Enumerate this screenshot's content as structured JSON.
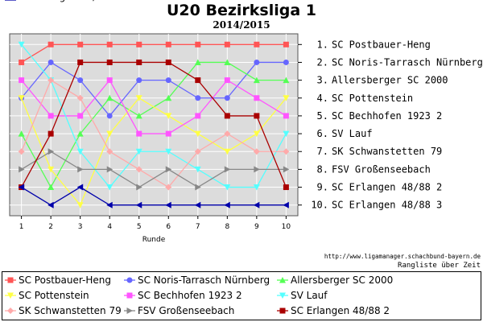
{
  "header": {
    "title": "U20 Bezirksliga 1",
    "subtitle": "2014/2015"
  },
  "footer": {
    "url": "http://www.ligamanager.schachbund-bayern.de",
    "caption": "Rangliste über Zeit"
  },
  "chart_data": {
    "type": "line",
    "title": "U20 Bezirksliga 1",
    "subtitle": "2014/2015",
    "xlabel": "Runde",
    "ylabel": "",
    "x": [
      1,
      2,
      3,
      4,
      5,
      6,
      7,
      8,
      9,
      10
    ],
    "xlim": [
      0.6,
      10.4
    ],
    "ylim": [
      10.6,
      0.4
    ],
    "y_inverted": true,
    "grid": true,
    "background": "#dcdcdc",
    "rank_labels": [
      "1.",
      "2.",
      "3.",
      "4.",
      "5.",
      "6.",
      "7.",
      "8.",
      "9.",
      "10."
    ],
    "final_standing": [
      "SC Postbauer-Heng",
      "SC Noris-Tarrasch Nürnberg",
      "Allersberger SC 2000",
      "SC Pottenstein",
      "SC Bechhofen 1923 2",
      "SV Lauf",
      "SK Schwanstetten 79",
      "FSV Großenseebach",
      "SC Erlangen 48/88 2",
      "SC Erlangen 48/88 3"
    ],
    "legend_position": "bottom",
    "series": [
      {
        "name": "SC Postbauer-Heng",
        "color": "#ff5555",
        "marker": "square",
        "values": [
          2,
          1,
          1,
          1,
          1,
          1,
          1,
          1,
          1,
          1
        ]
      },
      {
        "name": "SC Noris-Tarrasch Nürnberg",
        "color": "#6666ff",
        "marker": "circle",
        "values": [
          4,
          2,
          3,
          5,
          3,
          3,
          4,
          4,
          2,
          2
        ]
      },
      {
        "name": "Allersberger SC 2000",
        "color": "#55ff55",
        "marker": "triangle-up",
        "values": [
          6,
          9,
          6,
          4,
          5,
          4,
          2,
          2,
          3,
          3
        ]
      },
      {
        "name": "SC Pottenstein",
        "color": "#ffff44",
        "marker": "triangle-down",
        "values": [
          4,
          8,
          10,
          6,
          4,
          5,
          6,
          7,
          6,
          4
        ]
      },
      {
        "name": "SC Bechhofen 1923 2",
        "color": "#ff55ff",
        "marker": "square",
        "values": [
          3,
          5,
          5,
          3,
          6,
          6,
          5,
          3,
          4,
          5
        ]
      },
      {
        "name": "SV Lauf",
        "color": "#55ffff",
        "marker": "triangle-down",
        "values": [
          1,
          3,
          7,
          9,
          7,
          7,
          8,
          9,
          9,
          6
        ]
      },
      {
        "name": "SK Schwanstetten 79",
        "color": "#ffaaaa",
        "marker": "diamond",
        "values": [
          7,
          3,
          4,
          7,
          8,
          9,
          7,
          6,
          7,
          7
        ]
      },
      {
        "name": "FSV Großenseebach",
        "color": "#888888",
        "marker": "triangle-right",
        "values": [
          8,
          7,
          8,
          8,
          9,
          8,
          9,
          8,
          8,
          8
        ]
      },
      {
        "name": "SC Erlangen 48/88 2",
        "color": "#aa0000",
        "marker": "square",
        "values": [
          9,
          6,
          2,
          2,
          2,
          2,
          3,
          5,
          5,
          9
        ]
      },
      {
        "name": "SC Erlangen 48/88 3",
        "color": "#0000aa",
        "marker": "triangle-left",
        "values": [
          9,
          10,
          9,
          10,
          10,
          10,
          10,
          10,
          10,
          10
        ]
      }
    ]
  }
}
